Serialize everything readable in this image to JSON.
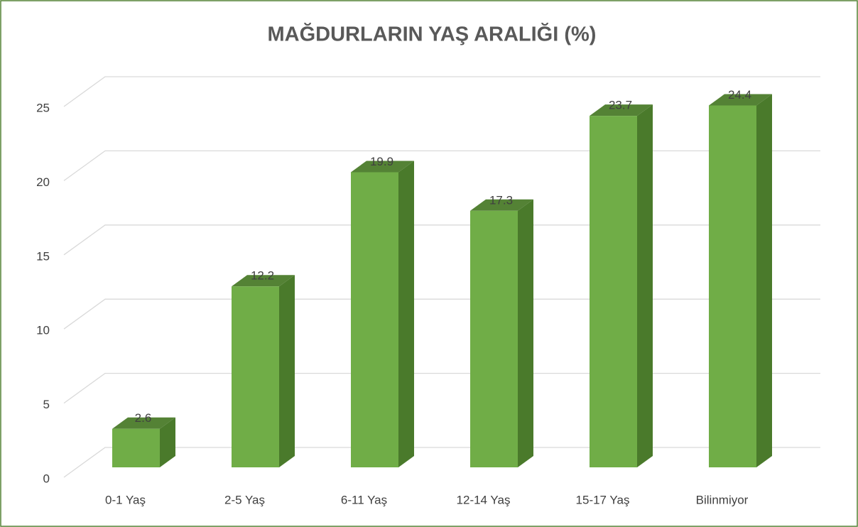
{
  "chart_data": {
    "type": "bar",
    "title": "MAĞDURLARIN YAŞ ARALIĞI (%)",
    "categories": [
      "0-1 Yaş",
      "2-5 Yaş",
      "6-11 Yaş",
      "12-14 Yaş",
      "15-17 Yaş",
      "Bilinmiyor"
    ],
    "values": [
      2.6,
      12.2,
      19.9,
      17.3,
      23.7,
      24.4
    ],
    "color": "#70ad47",
    "ylim": [
      0,
      25
    ],
    "yticks": [
      0,
      5,
      10,
      15,
      20,
      25
    ],
    "grid": true
  }
}
